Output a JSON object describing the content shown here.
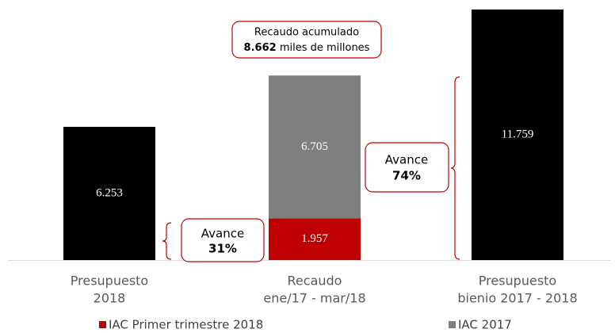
{
  "chart_data": {
    "type": "stacked-bar",
    "categories": [
      [
        "Presupuesto",
        "2018"
      ],
      [
        "Recaudo",
        "ene/17 - mar/18"
      ],
      [
        "Presupuesto",
        "bienio 2017 - 2018"
      ]
    ],
    "budget": {
      "color": "#000000",
      "values": [
        6253,
        null,
        11759
      ],
      "value_labels": [
        "6.253",
        null,
        "11.759"
      ]
    },
    "series": [
      {
        "name": "IAC Primer trimestre 2018",
        "color": "#c00000",
        "values": [
          null,
          1957,
          null
        ],
        "value_labels": [
          null,
          "1.957",
          null
        ]
      },
      {
        "name": "IAC 2017",
        "color": "#7f7f7f",
        "values": [
          null,
          6705,
          null
        ],
        "value_labels": [
          null,
          "6.705",
          null
        ]
      }
    ],
    "annotations": [
      {
        "line1": "Recaudo acumulado",
        "bold": "8.662",
        "rest": "miles de millones"
      },
      {
        "label": "Avance",
        "value": "31%"
      },
      {
        "label": "Avance",
        "value": "74%"
      }
    ]
  }
}
